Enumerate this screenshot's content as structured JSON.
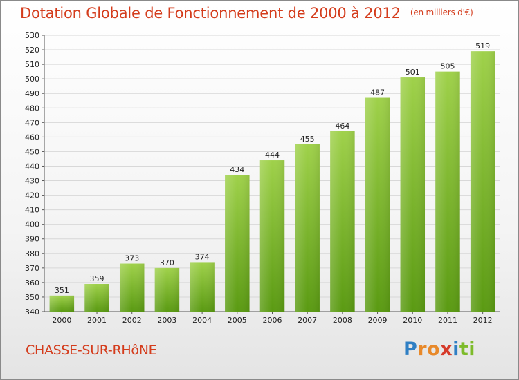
{
  "header": {
    "title": "Dotation Globale de Fonctionnement de 2000 à 2012",
    "unit": "(en milliers d'€)"
  },
  "footer": {
    "city": "CHASSE-SUR-RHôNE",
    "logo_letters": [
      {
        "ch": "P",
        "color": "#2f7fc4"
      },
      {
        "ch": "r",
        "color": "#e8892a"
      },
      {
        "ch": "o",
        "color": "#e8892a"
      },
      {
        "ch": "x",
        "color": "#d63a2a"
      },
      {
        "ch": "i",
        "color": "#2f7fc4"
      },
      {
        "ch": "t",
        "color": "#7dbb2a"
      },
      {
        "ch": "i",
        "color": "#7dbb2a"
      }
    ]
  },
  "colors": {
    "bar_light": "#9fd14a",
    "bar_dark": "#5a9a12",
    "grid": "#d8d8d8",
    "text_accent": "#d43c1c"
  },
  "chart_data": {
    "type": "bar",
    "title": "Dotation Globale de Fonctionnement de 2000 à 2012",
    "categories": [
      "2000",
      "2001",
      "2002",
      "2003",
      "2004",
      "2005",
      "2006",
      "2007",
      "2008",
      "2009",
      "2010",
      "2011",
      "2012"
    ],
    "values": [
      351,
      359,
      373,
      370,
      374,
      434,
      444,
      455,
      464,
      487,
      501,
      505,
      519
    ],
    "ylim": [
      340,
      530
    ],
    "yticks": [
      340,
      350,
      360,
      370,
      380,
      390,
      400,
      410,
      420,
      430,
      440,
      450,
      460,
      470,
      480,
      490,
      500,
      510,
      520,
      530
    ],
    "grid": true,
    "xlabel": "",
    "ylabel": ""
  }
}
